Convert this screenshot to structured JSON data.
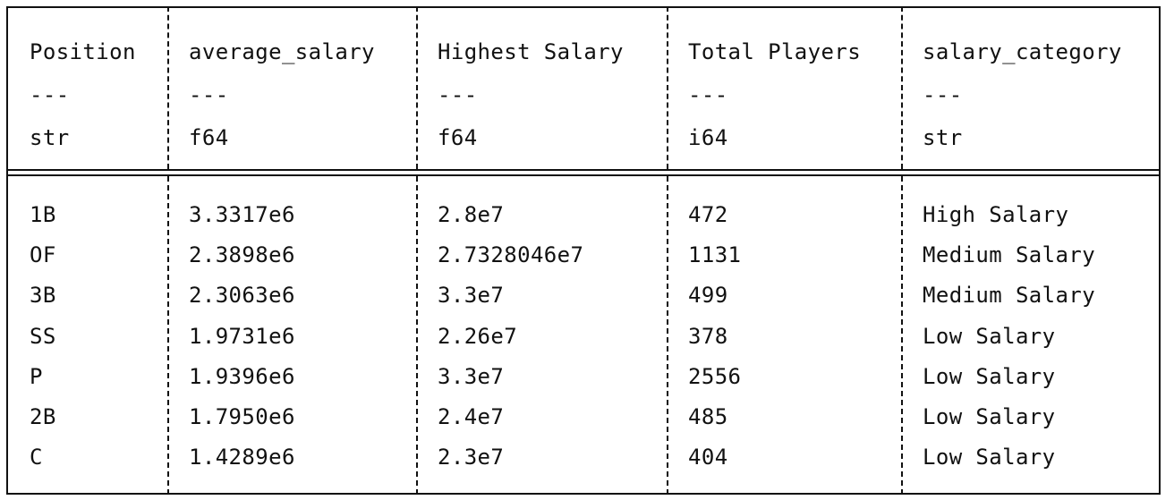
{
  "table": {
    "columns": [
      {
        "name": "Position",
        "sep": "---",
        "dtype": "str"
      },
      {
        "name": "average_salary",
        "sep": "---",
        "dtype": "f64"
      },
      {
        "name": "Highest Salary",
        "sep": "---",
        "dtype": "f64"
      },
      {
        "name": "Total Players",
        "sep": "---",
        "dtype": "i64"
      },
      {
        "name": "salary_category",
        "sep": "---",
        "dtype": "str"
      }
    ],
    "rows": [
      [
        "1B",
        "3.3317e6",
        "2.8e7",
        "472",
        "High Salary"
      ],
      [
        "OF",
        "2.3898e6",
        "2.7328046e7",
        "1131",
        "Medium Salary"
      ],
      [
        "3B",
        "2.3063e6",
        "3.3e7",
        "499",
        "Medium Salary"
      ],
      [
        "SS",
        "1.9731e6",
        "2.26e7",
        "378",
        "Low Salary"
      ],
      [
        "P",
        "1.9396e6",
        "3.3e7",
        "2556",
        "Low Salary"
      ],
      [
        "2B",
        "1.7950e6",
        "2.4e7",
        "485",
        "Low Salary"
      ],
      [
        "C",
        "1.4289e6",
        "2.3e7",
        "404",
        "Low Salary"
      ]
    ]
  }
}
